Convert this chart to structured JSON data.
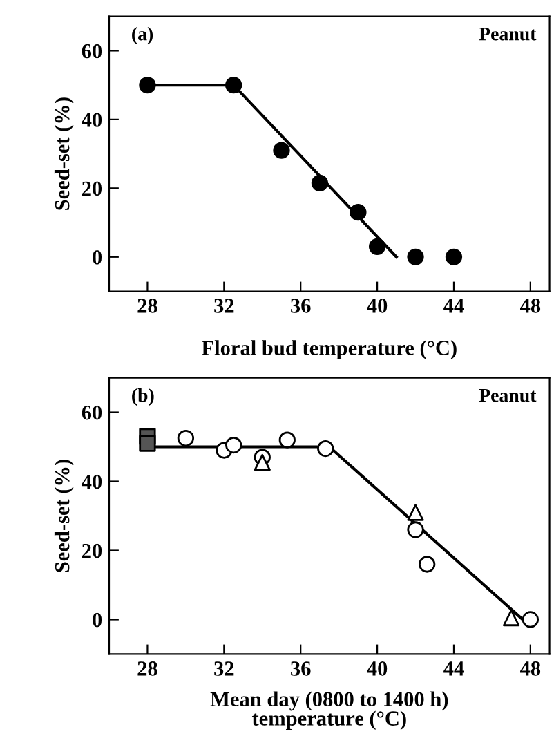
{
  "chart_data": [
    {
      "type": "scatter",
      "xlabel": "Floral bud temperature (°C)",
      "ylabel": "Seed-set (%)",
      "annotations": [
        "(a)",
        "Peanut"
      ],
      "xlim": [
        26,
        49
      ],
      "xticks": [
        28,
        32,
        36,
        40,
        44,
        48
      ],
      "ylim": [
        -10,
        70
      ],
      "yticks": [
        0,
        20,
        40,
        60
      ],
      "grid": false,
      "series": [
        {
          "marker": "circle",
          "color": "#000000",
          "x": [
            28,
            32.5,
            35,
            37,
            39,
            40,
            42,
            44
          ],
          "values": [
            50,
            50,
            31,
            21.5,
            13,
            3,
            0,
            0
          ]
        },
        {
          "type": "line",
          "marker": "none",
          "color": "#000000",
          "x": [
            28,
            32.5,
            41
          ],
          "values": [
            50,
            50,
            0
          ]
        }
      ]
    },
    {
      "type": "scatter",
      "xlabel": "Mean day (0800 to 1400 h)\ntemperature (°C)",
      "ylabel": "Seed-set (%)",
      "annotations": [
        "(b)",
        "Peanut"
      ],
      "xlim": [
        26,
        49
      ],
      "xticks": [
        28,
        32,
        36,
        40,
        44,
        48
      ],
      "ylim": [
        -10,
        70
      ],
      "yticks": [
        0,
        20,
        40,
        60
      ],
      "grid": false,
      "series": [
        {
          "marker": "circle",
          "color": "#ffffff",
          "x": [
            30,
            32,
            32.5,
            34,
            35.3,
            37.3,
            42,
            42.6,
            48
          ],
          "values": [
            52.5,
            49,
            50.5,
            47,
            52,
            49.5,
            26,
            16,
            0
          ]
        },
        {
          "marker": "triangle",
          "color": "#ffffff",
          "x": [
            34,
            42,
            47
          ],
          "values": [
            45.5,
            31,
            0.5
          ]
        },
        {
          "marker": "square",
          "color": "#555555",
          "x": [
            28,
            28
          ],
          "values": [
            53,
            51
          ]
        },
        {
          "type": "line",
          "marker": "none",
          "color": "#000000",
          "x": [
            28,
            37.5,
            47.6
          ],
          "values": [
            50,
            50,
            0
          ]
        }
      ]
    }
  ]
}
